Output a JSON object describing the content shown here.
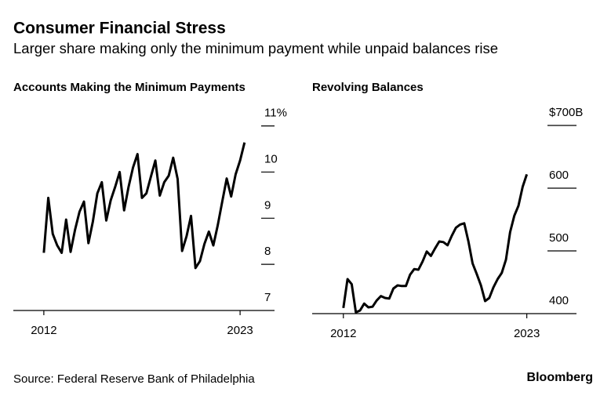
{
  "title": "Consumer Financial Stress",
  "subtitle": "Larger share making only the minimum payment while unpaid balances rise",
  "source": "Source: Federal Reserve Bank of Philadelphia",
  "brand": "Bloomberg",
  "chart_data": [
    {
      "type": "line",
      "title": "Accounts Making the Minimum Payments",
      "color": "#000000",
      "x": [
        2012.0,
        2012.25,
        2012.5,
        2012.75,
        2013.0,
        2013.25,
        2013.5,
        2013.75,
        2014.0,
        2014.25,
        2014.5,
        2014.75,
        2015.0,
        2015.25,
        2015.5,
        2015.75,
        2016.0,
        2016.25,
        2016.5,
        2016.75,
        2017.0,
        2017.25,
        2017.5,
        2017.75,
        2018.0,
        2018.25,
        2018.5,
        2018.75,
        2019.0,
        2019.25,
        2019.5,
        2019.75,
        2020.0,
        2020.25,
        2020.5,
        2020.75,
        2021.0,
        2021.25,
        2021.5,
        2021.75,
        2022.0,
        2022.25,
        2022.5,
        2022.75,
        2023.0,
        2023.25
      ],
      "values": [
        8.25,
        9.44,
        8.66,
        8.41,
        8.25,
        8.97,
        8.27,
        8.75,
        9.14,
        9.36,
        8.46,
        8.93,
        9.54,
        9.78,
        8.95,
        9.39,
        9.68,
        10.0,
        9.17,
        9.68,
        10.1,
        10.39,
        9.44,
        9.54,
        9.9,
        10.25,
        9.49,
        9.78,
        9.92,
        10.31,
        9.85,
        8.29,
        8.61,
        9.05,
        7.92,
        8.07,
        8.44,
        8.71,
        8.41,
        8.85,
        9.36,
        9.86,
        9.47,
        9.95,
        10.25,
        10.64
      ],
      "xlim": [
        2011.17,
        2024.93
      ],
      "xticks": [
        2012,
        2023
      ],
      "ylim": [
        7,
        11.35
      ],
      "yticks": [
        7,
        8,
        9,
        10,
        {
          "value": 11,
          "label": "11%"
        }
      ]
    },
    {
      "type": "line",
      "title": "Revolving Balances",
      "color": "#000000",
      "x": [
        2012.0,
        2012.25,
        2012.5,
        2012.75,
        2013.0,
        2013.25,
        2013.5,
        2013.75,
        2014.0,
        2014.25,
        2014.5,
        2014.75,
        2015.0,
        2015.25,
        2015.5,
        2015.75,
        2016.0,
        2016.25,
        2016.5,
        2016.75,
        2017.0,
        2017.25,
        2017.5,
        2017.75,
        2018.0,
        2018.25,
        2018.5,
        2018.75,
        2019.0,
        2019.25,
        2019.5,
        2019.75,
        2020.0,
        2020.25,
        2020.5,
        2020.75,
        2021.0,
        2021.25,
        2021.5,
        2021.75,
        2022.0,
        2022.25,
        2022.5,
        2022.75,
        2023.0
      ],
      "values": [
        409,
        455,
        447,
        402,
        405,
        416,
        410,
        411,
        421,
        428,
        425,
        424,
        440,
        445,
        444,
        444,
        462,
        471,
        470,
        483,
        499,
        492,
        504,
        515,
        514,
        509,
        524,
        537,
        542,
        544,
        515,
        480,
        463,
        445,
        420,
        425,
        442,
        455,
        465,
        486,
        530,
        556,
        572,
        602,
        622
      ],
      "xlim": [
        2011.07,
        2025.98
      ],
      "xticks": [
        2012,
        2023
      ],
      "ylim": [
        400,
        725
      ],
      "yticks": [
        400,
        500,
        600,
        {
          "value": 700,
          "label": "$700B"
        }
      ]
    }
  ]
}
